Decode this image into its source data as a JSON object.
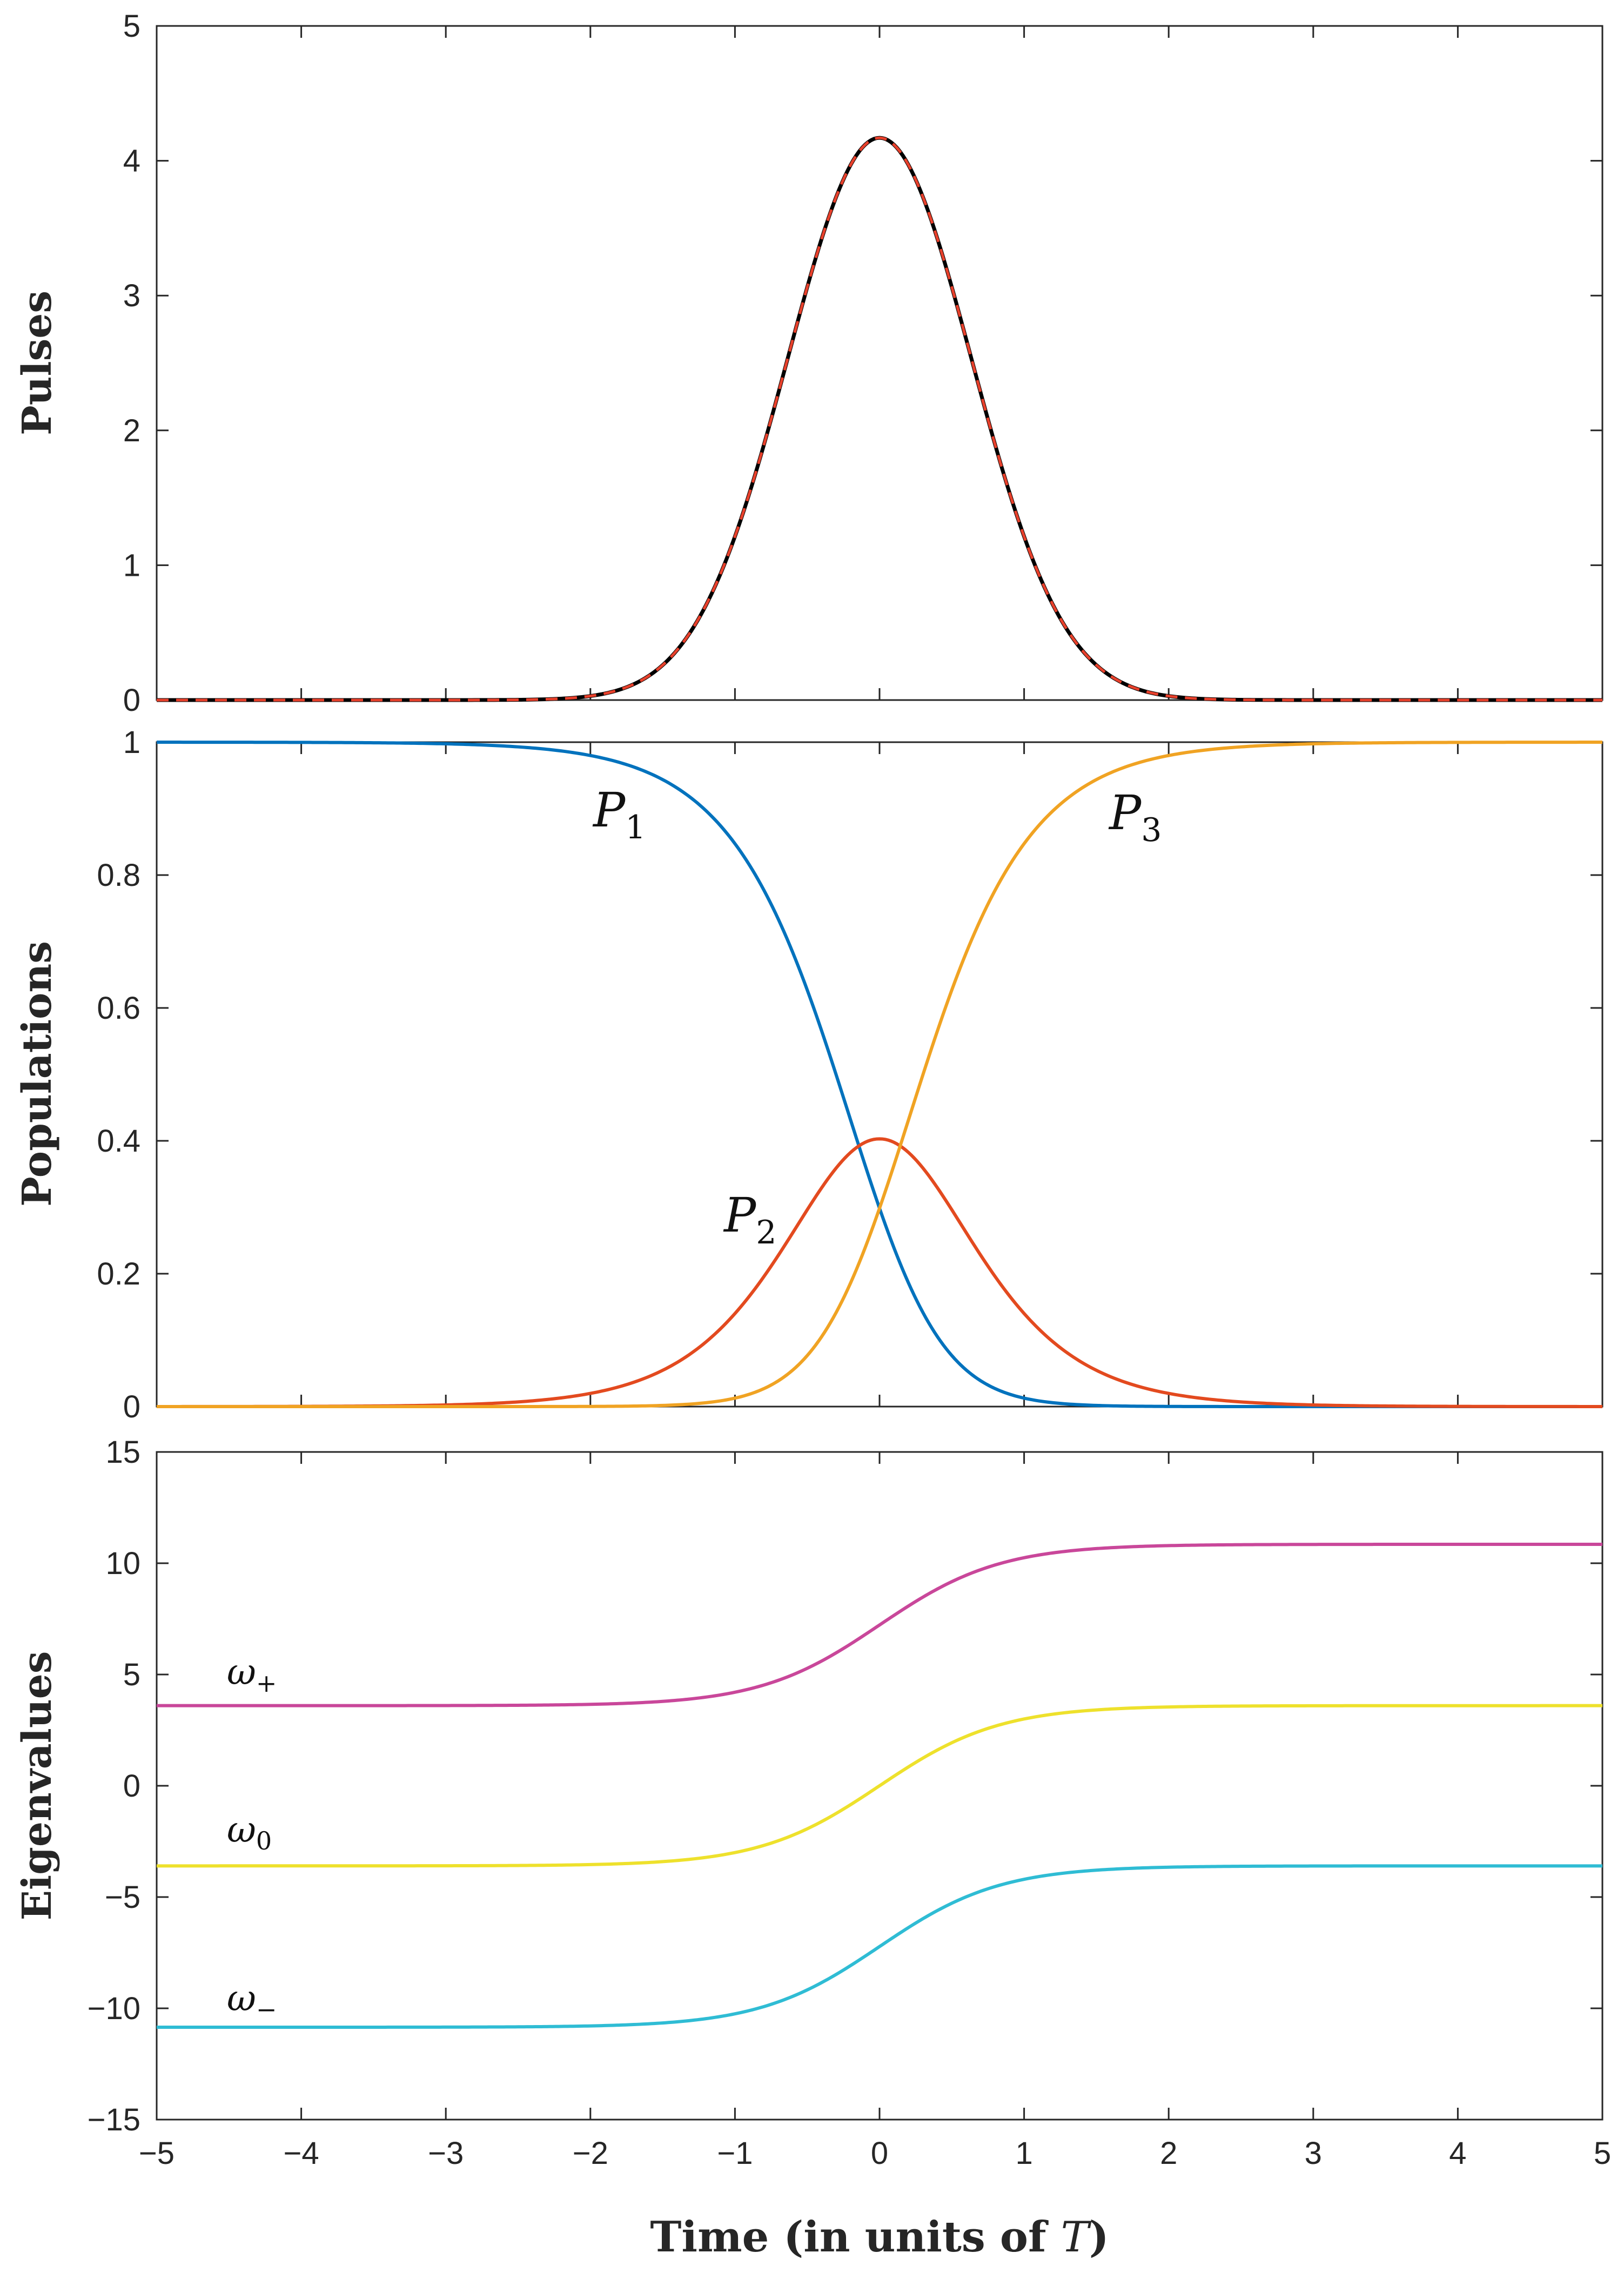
{
  "chart_data": [
    {
      "type": "line",
      "panel": "top",
      "ylabel": "Pulses",
      "xlim": [
        -5,
        5
      ],
      "ylim": [
        0,
        5
      ],
      "yticks": [
        "0",
        "1",
        "2",
        "3",
        "4",
        "5"
      ],
      "series": [
        {
          "name": "pulse-1",
          "style": "solid",
          "color": "#000000",
          "amplitude": 4.17,
          "center": 0,
          "width": 0.9
        },
        {
          "name": "pulse-2",
          "style": "dashed",
          "color": "#e8412c",
          "amplitude": 4.17,
          "center": 0,
          "width": 0.9
        }
      ]
    },
    {
      "type": "line",
      "panel": "middle",
      "ylabel": "Populations",
      "xlim": [
        -5,
        5
      ],
      "ylim": [
        0,
        1
      ],
      "yticks": [
        "0",
        "0.2",
        "0.4",
        "0.6",
        "0.8",
        "1"
      ],
      "series": [
        {
          "name": "P1",
          "color": "#0072bd",
          "label_text": "P",
          "label_sub": "1"
        },
        {
          "name": "P2",
          "color": "#e34a1f",
          "label_text": "P",
          "label_sub": "2"
        },
        {
          "name": "P3",
          "color": "#f0a323",
          "label_text": "P",
          "label_sub": "3"
        }
      ]
    },
    {
      "type": "line",
      "panel": "bottom",
      "ylabel": "Eigenvalues",
      "xlabel_prefix": "Time (in units of ",
      "xlabel_var": "T",
      "xlabel_suffix": ")",
      "xlim": [
        -5,
        5
      ],
      "ylim": [
        -15,
        15
      ],
      "yticks": [
        "−15",
        "−10",
        "−5",
        "0",
        "5",
        "10",
        "15"
      ],
      "xticks": [
        "−5",
        "−4",
        "−3",
        "−2",
        "−1",
        "0",
        "1",
        "2",
        "3",
        "4",
        "5"
      ],
      "series": [
        {
          "name": "omega-plus",
          "color": "#c9479a",
          "start": 3.6,
          "end": 10.85,
          "label_text": "ω",
          "label_sub": "+"
        },
        {
          "name": "omega-zero",
          "color": "#eee12c",
          "start": -3.6,
          "end": 3.6,
          "label_text": "ω",
          "label_sub": "0"
        },
        {
          "name": "omega-minus",
          "color": "#2fbcd4",
          "start": -10.85,
          "end": -3.6,
          "label_text": "ω",
          "label_sub": "−"
        }
      ]
    }
  ]
}
